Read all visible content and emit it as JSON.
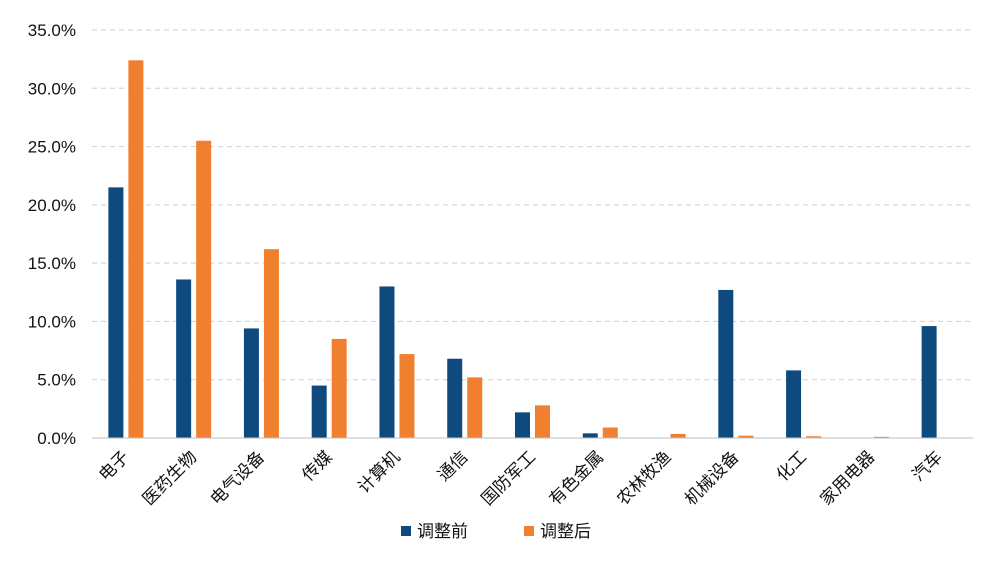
{
  "chart_data": {
    "type": "bar",
    "title": "",
    "xlabel": "",
    "ylabel": "",
    "categories": [
      "电子",
      "医药生物",
      "电气设备",
      "传媒",
      "计算机",
      "通信",
      "国防军工",
      "有色金属",
      "农林牧渔",
      "机械设备",
      "化工",
      "家用电器",
      "汽车"
    ],
    "series": [
      {
        "name": "调整前",
        "color": "#0e4a7e",
        "values": [
          21.5,
          13.6,
          9.4,
          4.5,
          13.0,
          6.8,
          2.2,
          0.4,
          0.0,
          12.7,
          5.8,
          0.0,
          9.6
        ]
      },
      {
        "name": "调整后",
        "color": "#f08030",
        "values": [
          32.4,
          25.5,
          16.2,
          8.5,
          7.2,
          5.2,
          2.8,
          0.9,
          0.35,
          0.2,
          0.15,
          0.1,
          0.0
        ]
      }
    ],
    "ylim": [
      0,
      35
    ],
    "yticks": [
      "0.0%",
      "5.0%",
      "10.0%",
      "15.0%",
      "20.0%",
      "25.0%",
      "30.0%",
      "35.0%"
    ],
    "grid": true,
    "legend_position": "bottom-center"
  }
}
